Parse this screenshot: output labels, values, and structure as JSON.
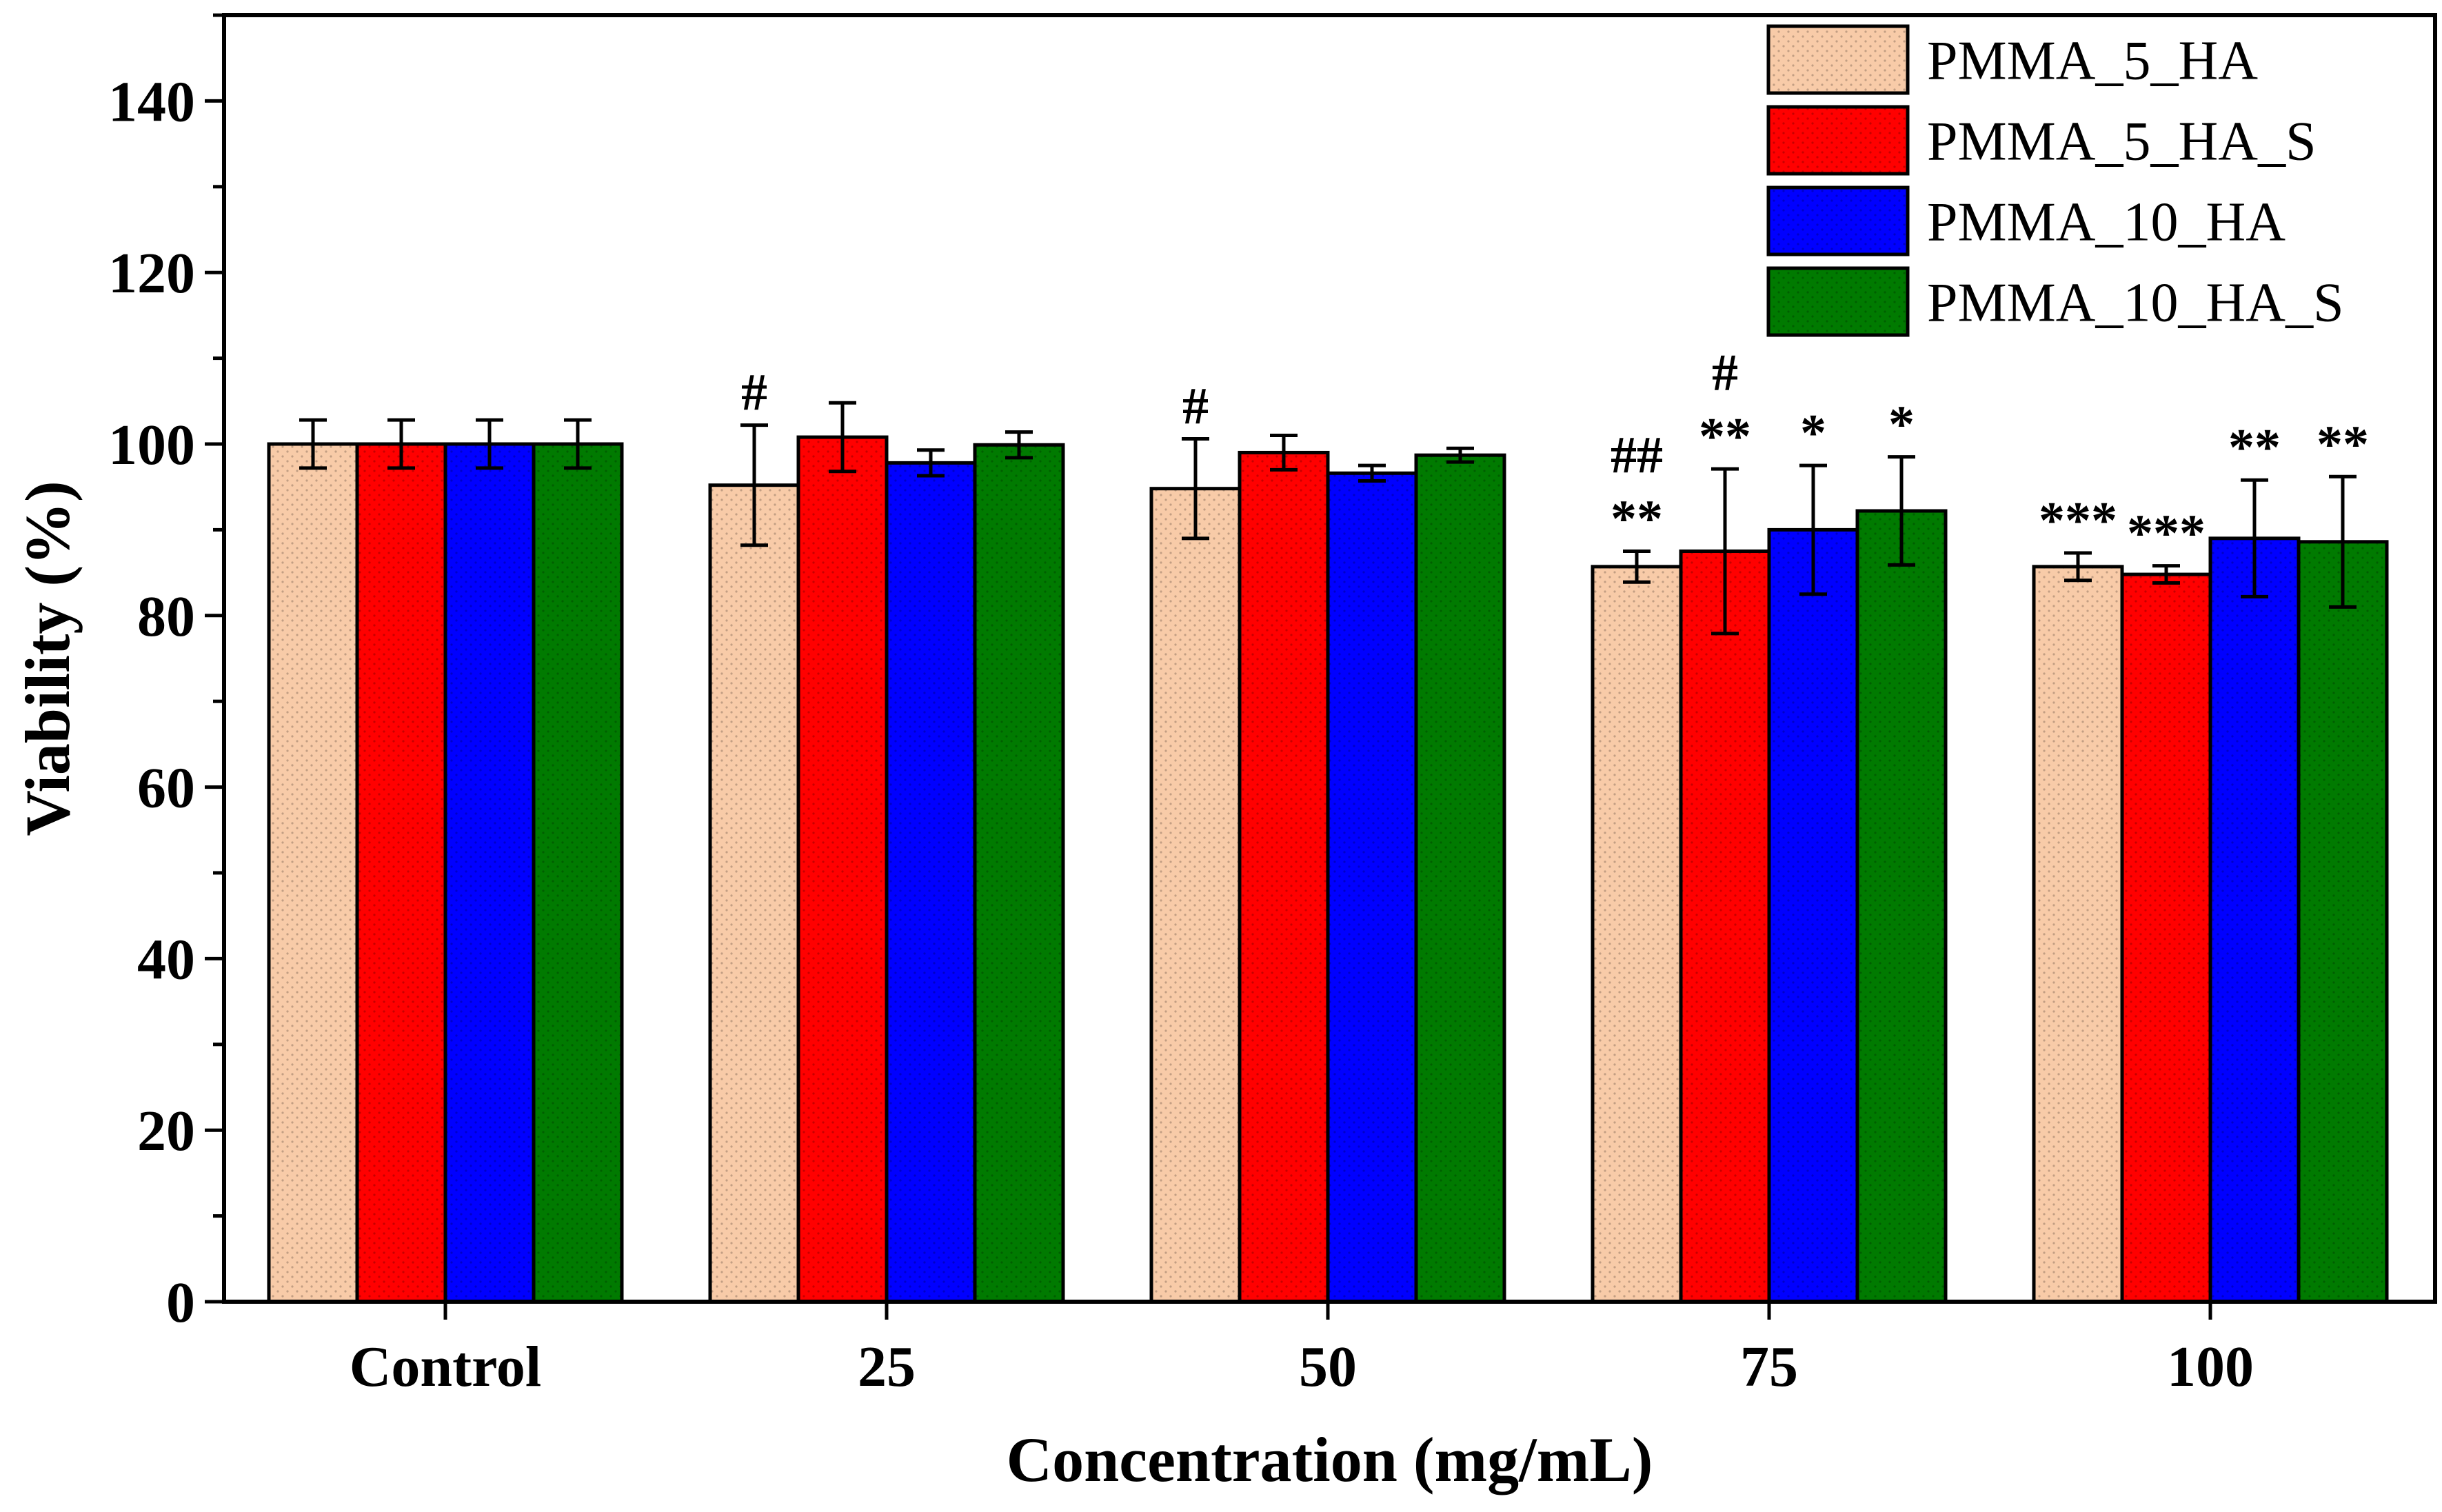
{
  "chart_data": {
    "type": "bar",
    "title": "",
    "xlabel": "Concentration (mg/mL)",
    "ylabel": "Viability (%)",
    "ylim": [
      0,
      150
    ],
    "yticks": [
      0,
      20,
      40,
      60,
      80,
      100,
      120,
      140
    ],
    "categories": [
      "Control",
      "25",
      "50",
      "75",
      "100"
    ],
    "legend_position": "top-right",
    "series": [
      {
        "name": "PMMA_5_HA",
        "color": "#f8cba8",
        "pattern": "dots",
        "values": [
          100,
          95.2,
          94.8,
          85.7,
          85.7
        ],
        "errors": [
          2.8,
          7.0,
          5.8,
          1.8,
          1.6
        ],
        "annotations": [
          "",
          "#",
          "#",
          "##|**",
          "***"
        ]
      },
      {
        "name": "PMMA_5_HA_S",
        "color": "#ff0000",
        "pattern": "dots",
        "values": [
          100,
          100.8,
          99.0,
          87.5,
          84.8
        ],
        "errors": [
          2.8,
          4.0,
          2.0,
          9.6,
          1.0
        ],
        "annotations": [
          "",
          "",
          "",
          "#|**",
          "***"
        ]
      },
      {
        "name": "PMMA_10_HA",
        "color": "#0000ff",
        "pattern": "dots",
        "values": [
          100,
          97.8,
          96.6,
          90.0,
          89.0
        ],
        "errors": [
          2.8,
          1.5,
          0.9,
          7.5,
          6.8
        ],
        "annotations": [
          "",
          "",
          "",
          "*",
          "**"
        ]
      },
      {
        "name": "PMMA_10_HA_S",
        "color": "#007a00",
        "pattern": "dots",
        "values": [
          100,
          99.9,
          98.7,
          92.2,
          88.6
        ],
        "errors": [
          2.8,
          1.5,
          0.8,
          6.3,
          7.6
        ],
        "annotations": [
          "",
          "",
          "",
          "*",
          "**"
        ]
      }
    ]
  }
}
